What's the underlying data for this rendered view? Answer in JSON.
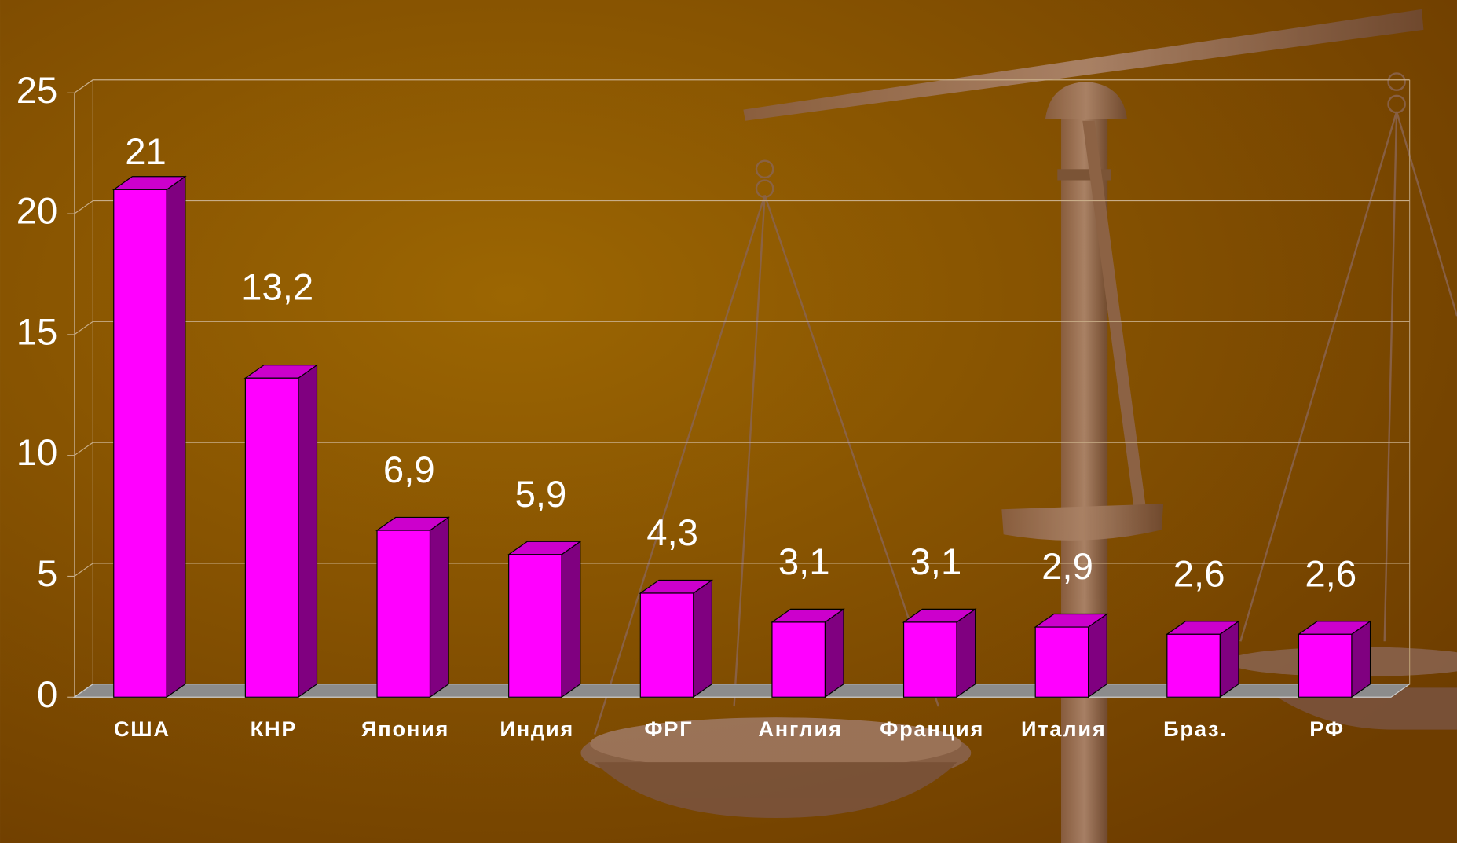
{
  "chart_data": {
    "type": "bar3d",
    "categories": [
      "США",
      "КНР",
      "Япония",
      "Индия",
      "ФРГ",
      "Англия",
      "Франция",
      "Италия",
      "Браз.",
      "РФ"
    ],
    "values": [
      21,
      13.2,
      6.9,
      5.9,
      4.3,
      3.1,
      3.1,
      2.9,
      2.6,
      2.6
    ],
    "value_labels": [
      "21",
      "13,2",
      "6,9",
      "5,9",
      "4,3",
      "3,1",
      "3,1",
      "2,9",
      "2,6",
      "2,6"
    ],
    "color": "#ff00ff",
    "side_color": "#800080",
    "top_color": "#cc00cc",
    "ylim": [
      0,
      25
    ],
    "yticks": [
      0,
      5,
      10,
      15,
      20,
      25
    ],
    "grid": true
  }
}
